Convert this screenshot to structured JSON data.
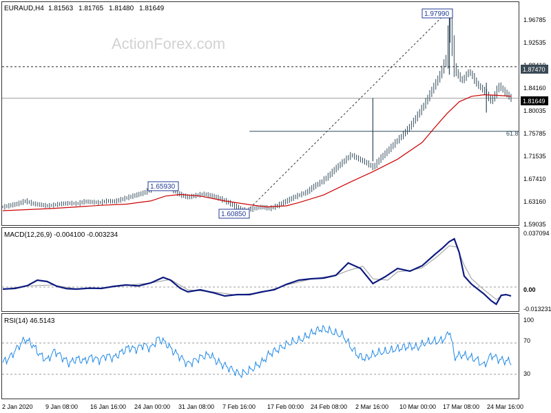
{
  "chart_data": [
    {
      "type": "ohlc",
      "symbol_label": "EURAUD,H4",
      "ohlc_readout": [
        "1.81563",
        "1.81765",
        "1.81480",
        "1.81649"
      ],
      "watermark": "ActionForex.com",
      "y_ticks": [
        "1.96785",
        "1.92535",
        "1.88410",
        "1.84160",
        "1.80035",
        "1.75785",
        "1.71535",
        "1.67410",
        "1.63160",
        "1.59035"
      ],
      "ylim": [
        1.585,
        1.985
      ],
      "current_price": "1.81649",
      "marked_level": "1.87470",
      "fib_label": "61.8",
      "fib_level": 1.7555,
      "annotations": [
        {
          "label": "1.65930",
          "value": 1.6593
        },
        {
          "label": "1.60850",
          "value": 1.6085
        },
        {
          "label": "1.97990",
          "value": 1.9799
        }
      ],
      "x_ticks": [
        "2 Jan 2020",
        "9 Jan 08:00",
        "16 Jan 16:00",
        "24 Jan 00:00",
        "31 Jan 08:00",
        "7 Feb 16:00",
        "17 Feb 00:00",
        "24 Feb 08:00",
        "2 Mar 16:00",
        "10 Mar 00:00",
        "17 Mar 08:00",
        "24 Mar 16:00"
      ],
      "price_series": [
        [
          0,
          1.616
        ],
        [
          3,
          1.619
        ],
        [
          6,
          1.622
        ],
        [
          9,
          1.627
        ],
        [
          12,
          1.622
        ],
        [
          15,
          1.62
        ],
        [
          18,
          1.618
        ],
        [
          21,
          1.62
        ],
        [
          24,
          1.622
        ],
        [
          27,
          1.623
        ],
        [
          30,
          1.622
        ],
        [
          33,
          1.626
        ],
        [
          36,
          1.625
        ],
        [
          39,
          1.624
        ],
        [
          42,
          1.627
        ],
        [
          45,
          1.626
        ],
        [
          48,
          1.63
        ],
        [
          51,
          1.634
        ],
        [
          54,
          1.638
        ],
        [
          57,
          1.642
        ],
        [
          60,
          1.649
        ],
        [
          63,
          1.659
        ],
        [
          66,
          1.655
        ],
        [
          69,
          1.647
        ],
        [
          72,
          1.638
        ],
        [
          75,
          1.634
        ],
        [
          78,
          1.637
        ],
        [
          81,
          1.64
        ],
        [
          84,
          1.637
        ],
        [
          87,
          1.633
        ],
        [
          90,
          1.627
        ],
        [
          93,
          1.62
        ],
        [
          96,
          1.612
        ],
        [
          99,
          1.609
        ],
        [
          102,
          1.614
        ],
        [
          105,
          1.616
        ],
        [
          108,
          1.613
        ],
        [
          111,
          1.618
        ],
        [
          114,
          1.625
        ],
        [
          117,
          1.632
        ],
        [
          120,
          1.638
        ],
        [
          123,
          1.643
        ],
        [
          126,
          1.654
        ],
        [
          129,
          1.662
        ],
        [
          132,
          1.674
        ],
        [
          135,
          1.688
        ],
        [
          138,
          1.7
        ],
        [
          141,
          1.712
        ],
        [
          144,
          1.705
        ],
        [
          147,
          1.698
        ],
        [
          150,
          1.689
        ],
        [
          153,
          1.706
        ],
        [
          156,
          1.72
        ],
        [
          159,
          1.735
        ],
        [
          162,
          1.749
        ],
        [
          165,
          1.765
        ],
        [
          168,
          1.785
        ],
        [
          171,
          1.807
        ],
        [
          174,
          1.833
        ],
        [
          177,
          1.858
        ],
        [
          180,
          1.895
        ],
        [
          181,
          1.975
        ],
        [
          182,
          1.92
        ],
        [
          183,
          1.87
        ],
        [
          186,
          1.848
        ],
        [
          189,
          1.867
        ],
        [
          192,
          1.843
        ],
        [
          195,
          1.83
        ],
        [
          198,
          1.81
        ],
        [
          201,
          1.84
        ],
        [
          204,
          1.825
        ],
        [
          206,
          1.815
        ]
      ],
      "ma_series": [
        [
          0,
          1.609
        ],
        [
          10,
          1.611
        ],
        [
          20,
          1.613
        ],
        [
          30,
          1.616
        ],
        [
          40,
          1.619
        ],
        [
          50,
          1.621
        ],
        [
          60,
          1.627
        ],
        [
          66,
          1.636
        ],
        [
          72,
          1.639
        ],
        [
          80,
          1.636
        ],
        [
          90,
          1.627
        ],
        [
          100,
          1.62
        ],
        [
          107,
          1.616
        ],
        [
          115,
          1.618
        ],
        [
          120,
          1.624
        ],
        [
          130,
          1.638
        ],
        [
          140,
          1.66
        ],
        [
          150,
          1.681
        ],
        [
          160,
          1.704
        ],
        [
          170,
          1.735
        ],
        [
          175,
          1.762
        ],
        [
          180,
          1.788
        ],
        [
          185,
          1.81
        ],
        [
          190,
          1.82
        ],
        [
          195,
          1.823
        ],
        [
          200,
          1.822
        ],
        [
          206,
          1.82
        ]
      ],
      "fib_line_x": [
        100,
        206
      ],
      "trend_line": [
        [
          99,
          1.6085
        ],
        [
          181,
          1.9799
        ]
      ],
      "x_max": 206
    },
    {
      "type": "line",
      "label": "MACD(12,26,9) -0.004100 -0.003234",
      "y_ticks": [
        "0.037094",
        "0.00",
        "-0.013231"
      ],
      "ylim": [
        -0.0175,
        0.0405
      ],
      "zero_label": "0.00",
      "series": [
        {
          "values": [
            [
              0,
              -0.0015
            ],
            [
              5,
              -0.001
            ],
            [
              10,
              0.001
            ],
            [
              14,
              0.005
            ],
            [
              18,
              0.004
            ],
            [
              22,
              0.0005
            ],
            [
              26,
              -0.0012
            ],
            [
              30,
              -0.0015
            ],
            [
              35,
              -0.0008
            ],
            [
              40,
              -0.001
            ],
            [
              45,
              0.0005
            ],
            [
              50,
              0.0015
            ],
            [
              55,
              0.0008
            ],
            [
              60,
              0.003
            ],
            [
              65,
              0.007
            ],
            [
              68,
              0.005
            ],
            [
              72,
              -0.001
            ],
            [
              75,
              -0.0035
            ],
            [
              80,
              -0.002
            ],
            [
              85,
              -0.004
            ],
            [
              90,
              -0.0065
            ],
            [
              95,
              -0.0055
            ],
            [
              100,
              -0.0055
            ],
            [
              105,
              -0.0035
            ],
            [
              110,
              -0.002
            ],
            [
              115,
              0.002
            ],
            [
              120,
              0.005
            ],
            [
              125,
              0.006
            ],
            [
              130,
              0.0065
            ],
            [
              135,
              0.0085
            ],
            [
              140,
              0.0175
            ],
            [
              145,
              0.0135
            ],
            [
              150,
              0.0025
            ],
            [
              155,
              0.0075
            ],
            [
              160,
              0.0135
            ],
            [
              165,
              0.0115
            ],
            [
              170,
              0.0155
            ],
            [
              175,
              0.0235
            ],
            [
              178,
              0.028
            ],
            [
              181,
              0.033
            ],
            [
              183,
              0.035
            ],
            [
              185,
              0.025
            ],
            [
              187,
              0.008
            ],
            [
              190,
              0.002
            ],
            [
              195,
              -0.005
            ],
            [
              198,
              -0.01
            ],
            [
              200,
              -0.0125
            ],
            [
              202,
              -0.006
            ],
            [
              204,
              -0.0055
            ],
            [
              206,
              -0.0065
            ]
          ]
        },
        {
          "values": [
            [
              0,
              -0.0017
            ],
            [
              10,
              0.0008
            ],
            [
              20,
              0.0015
            ],
            [
              30,
              -0.0014
            ],
            [
              40,
              -0.001
            ],
            [
              50,
              0.0012
            ],
            [
              60,
              0.003
            ],
            [
              68,
              0.0055
            ],
            [
              75,
              -0.002
            ],
            [
              85,
              -0.0035
            ],
            [
              95,
              -0.0058
            ],
            [
              105,
              -0.004
            ],
            [
              115,
              0.0015
            ],
            [
              125,
              0.0058
            ],
            [
              135,
              0.0085
            ],
            [
              140,
              0.012
            ],
            [
              146,
              0.015
            ],
            [
              150,
              0.006
            ],
            [
              156,
              0.005
            ],
            [
              160,
              0.011
            ],
            [
              165,
              0.012
            ],
            [
              170,
              0.014
            ],
            [
              176,
              0.022
            ],
            [
              181,
              0.03
            ],
            [
              184,
              0.029
            ],
            [
              187,
              0.016
            ],
            [
              190,
              0.006
            ],
            [
              195,
              -0.002
            ],
            [
              200,
              -0.009
            ],
            [
              203,
              -0.0055
            ],
            [
              206,
              -0.0064
            ]
          ]
        }
      ]
    },
    {
      "type": "line",
      "label": "RSI(14) 46.5143",
      "y_ticks": [
        "100",
        "70",
        "30"
      ],
      "ylim": [
        0,
        100
      ],
      "levels": [
        70,
        30
      ],
      "series": [
        {
          "values": [
            [
              0,
              45
            ],
            [
              3,
              52
            ],
            [
              6,
              64
            ],
            [
              9,
              75
            ],
            [
              12,
              68
            ],
            [
              15,
              55
            ],
            [
              18,
              48
            ],
            [
              21,
              60
            ],
            [
              24,
              52
            ],
            [
              27,
              44
            ],
            [
              30,
              50
            ],
            [
              33,
              47
            ],
            [
              36,
              52
            ],
            [
              39,
              48
            ],
            [
              42,
              54
            ],
            [
              45,
              51
            ],
            [
              48,
              58
            ],
            [
              51,
              64
            ],
            [
              54,
              62
            ],
            [
              57,
              68
            ],
            [
              60,
              63
            ],
            [
              63,
              76
            ],
            [
              66,
              70
            ],
            [
              69,
              60
            ],
            [
              72,
              52
            ],
            [
              75,
              43
            ],
            [
              78,
              48
            ],
            [
              81,
              53
            ],
            [
              84,
              55
            ],
            [
              87,
              46
            ],
            [
              90,
              41
            ],
            [
              93,
              36
            ],
            [
              96,
              30
            ],
            [
              99,
              33
            ],
            [
              102,
              39
            ],
            [
              105,
              45
            ],
            [
              108,
              56
            ],
            [
              111,
              61
            ],
            [
              114,
              66
            ],
            [
              117,
              71
            ],
            [
              120,
              73
            ],
            [
              123,
              78
            ],
            [
              126,
              84
            ],
            [
              129,
              88
            ],
            [
              132,
              86
            ],
            [
              135,
              82
            ],
            [
              138,
              79
            ],
            [
              141,
              65
            ],
            [
              144,
              54
            ],
            [
              147,
              50
            ],
            [
              150,
              55
            ],
            [
              153,
              58
            ],
            [
              156,
              59
            ],
            [
              159,
              62
            ],
            [
              162,
              64
            ],
            [
              165,
              66
            ],
            [
              168,
              64
            ],
            [
              171,
              70
            ],
            [
              174,
              72
            ],
            [
              177,
              72
            ],
            [
              180,
              78
            ],
            [
              181,
              88
            ],
            [
              182,
              72
            ],
            [
              183,
              52
            ],
            [
              186,
              55
            ],
            [
              189,
              52
            ],
            [
              192,
              49
            ],
            [
              195,
              41
            ],
            [
              198,
              55
            ],
            [
              201,
              49
            ],
            [
              204,
              47
            ],
            [
              206,
              46.5
            ]
          ]
        }
      ]
    }
  ]
}
